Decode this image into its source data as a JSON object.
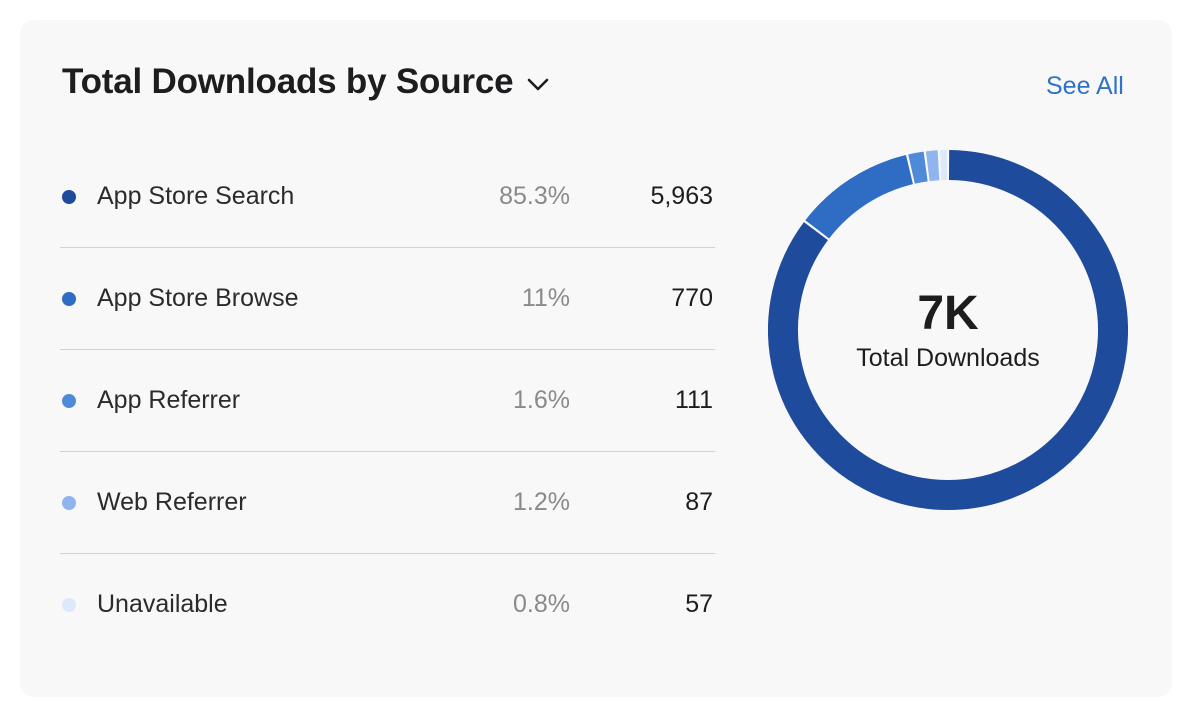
{
  "header": {
    "title": "Total Downloads by Source",
    "see_all_label": "See All"
  },
  "sources": [
    {
      "label": "App Store Search",
      "percent": "85.3%",
      "value": "5,963",
      "count": 5963,
      "color": "#1f4b9c"
    },
    {
      "label": "App Store Browse",
      "percent": "11%",
      "value": "770",
      "count": 770,
      "color": "#2f6cc3"
    },
    {
      "label": "App Referrer",
      "percent": "1.6%",
      "value": "111",
      "count": 111,
      "color": "#4f8ad9"
    },
    {
      "label": "Web Referrer",
      "percent": "1.2%",
      "value": "87",
      "count": 87,
      "color": "#8fb4ee"
    },
    {
      "label": "Unavailable",
      "percent": "0.8%",
      "value": "57",
      "count": 57,
      "color": "#dde8fa"
    }
  ],
  "donut": {
    "total_display": "7K",
    "total_label": "Total Downloads"
  },
  "icons": {
    "title_dropdown": "chevron-down-icon"
  }
}
